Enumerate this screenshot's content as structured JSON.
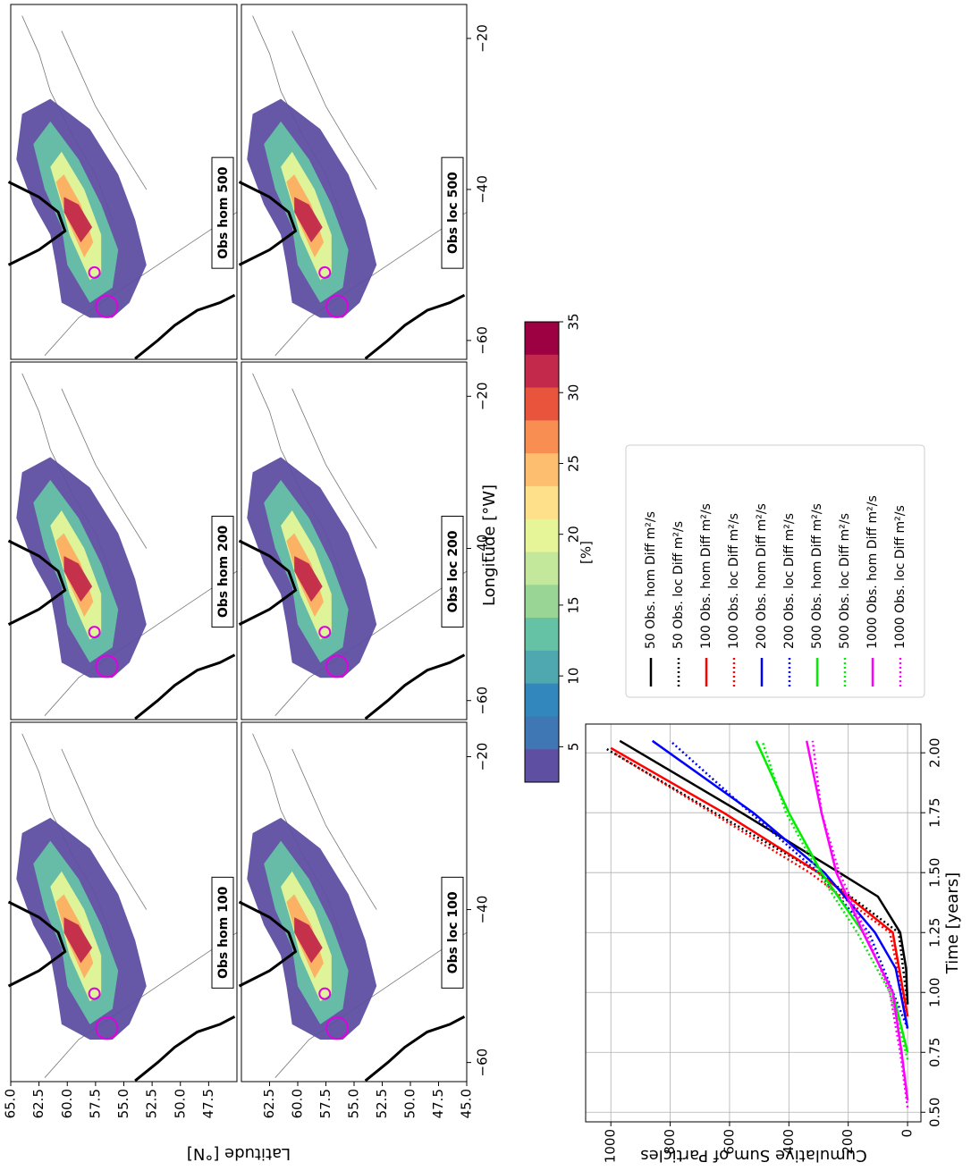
{
  "maps": {
    "panels": [
      {
        "title": "Obs hom 100"
      },
      {
        "title": "Obs hom 200"
      },
      {
        "title": "Obs hom 500"
      },
      {
        "title": "Obs loc 100"
      },
      {
        "title": "Obs loc 200"
      },
      {
        "title": "Obs loc 500"
      }
    ],
    "xlabel": "Longitude [°W]",
    "ylabel": "Latitude [°N]",
    "xlim": [
      -62.5,
      -15.5
    ],
    "ylim": [
      45,
      65
    ],
    "xticks": [
      {
        "value": -60,
        "label": "−60"
      },
      {
        "value": -40,
        "label": "−40"
      },
      {
        "value": -20,
        "label": "−20"
      }
    ],
    "row_yticks": [
      [
        {
          "value": 65,
          "label": "65.0"
        },
        {
          "value": 62.5,
          "label": "62.5"
        },
        {
          "value": 60,
          "label": "60.0"
        },
        {
          "value": 57.5,
          "label": "57.5"
        },
        {
          "value": 55,
          "label": "55.0"
        },
        {
          "value": 52.5,
          "label": "52.5"
        },
        {
          "value": 50,
          "label": "50.0"
        },
        {
          "value": 47.5,
          "label": "47.5"
        }
      ],
      [
        {
          "value": 62.5,
          "label": "62.5"
        },
        {
          "value": 60,
          "label": "60.0"
        },
        {
          "value": 57.5,
          "label": "57.5"
        },
        {
          "value": 55,
          "label": "55.0"
        },
        {
          "value": 52.5,
          "label": "52.5"
        },
        {
          "value": 50,
          "label": "50.0"
        },
        {
          "value": 47.5,
          "label": "47.5"
        },
        {
          "value": 45,
          "label": "45.0"
        }
      ]
    ],
    "colorbar": {
      "label": "[%]",
      "lim": [
        2.5,
        35
      ],
      "ticks": [
        5,
        10,
        15,
        20,
        25,
        30,
        35
      ]
    }
  },
  "chart_data": {
    "type": "line",
    "xlabel": "Time [years]",
    "ylabel": "Cumulative Sum of Particles",
    "xlim": [
      0.46,
      2.12
    ],
    "ylim": [
      -45,
      1085
    ],
    "grid": true,
    "xticks": [
      {
        "value": 0.5,
        "label": "0.50"
      },
      {
        "value": 0.75,
        "label": "0.75"
      },
      {
        "value": 1.0,
        "label": "1.00"
      },
      {
        "value": 1.25,
        "label": "1.25"
      },
      {
        "value": 1.5,
        "label": "1.50"
      },
      {
        "value": 1.75,
        "label": "1.75"
      },
      {
        "value": 2.0,
        "label": "2.00"
      }
    ],
    "yticks": [
      0,
      200,
      400,
      600,
      800,
      1000
    ],
    "series": [
      {
        "name": "50 Obs. hom Diff m²/s",
        "color": "#000000",
        "linestyle": "solid",
        "x": [
          0.95,
          1.1,
          1.25,
          1.4,
          1.5,
          1.75,
          2.05
        ],
        "values": [
          0,
          5,
          25,
          100,
          230,
          560,
          970
        ]
      },
      {
        "name": "50 Obs. loc Diff m²/s",
        "color": "#000000",
        "linestyle": "dotted",
        "x": [
          0.95,
          1.25,
          1.5,
          1.75,
          2.02
        ],
        "values": [
          0,
          30,
          300,
          650,
          1020
        ]
      },
      {
        "name": "100 Obs. hom Diff m²/s",
        "color": "#ff0000",
        "linestyle": "solid",
        "x": [
          0.9,
          1.25,
          1.5,
          1.75,
          2.02
        ],
        "values": [
          0,
          50,
          300,
          620,
          1000
        ]
      },
      {
        "name": "100 Obs. loc Diff m²/s",
        "color": "#ff0000",
        "linestyle": "dotted",
        "x": [
          0.9,
          1.25,
          1.5,
          1.75,
          2.0
        ],
        "values": [
          0,
          60,
          330,
          660,
          990
        ]
      },
      {
        "name": "200 Obs. hom Diff m²/s",
        "color": "#0000ff",
        "linestyle": "solid",
        "x": [
          0.85,
          1.1,
          1.25,
          1.5,
          1.75,
          2.05
        ],
        "values": [
          0,
          40,
          110,
          280,
          520,
          860
        ]
      },
      {
        "name": "200 Obs. loc Diff m²/s",
        "color": "#0000ff",
        "linestyle": "dotted",
        "x": [
          0.85,
          1.25,
          1.5,
          1.75,
          2.05
        ],
        "values": [
          0,
          130,
          300,
          530,
          800
        ]
      },
      {
        "name": "500 Obs. hom Diff m²/s",
        "color": "#00ee00",
        "linestyle": "solid",
        "x": [
          0.75,
          1.0,
          1.25,
          1.5,
          1.75,
          2.05
        ],
        "values": [
          0,
          50,
          150,
          290,
          400,
          510
        ]
      },
      {
        "name": "500 Obs. loc Diff m²/s",
        "color": "#00ee00",
        "linestyle": "dotted",
        "x": [
          0.72,
          1.0,
          1.25,
          1.5,
          1.75,
          2.05
        ],
        "values": [
          0,
          60,
          170,
          300,
          410,
          490
        ]
      },
      {
        "name": "1000 Obs. hom Diff m²/s",
        "color": "#ff00ff",
        "linestyle": "solid",
        "x": [
          0.55,
          0.75,
          1.0,
          1.25,
          1.5,
          1.75,
          2.05
        ],
        "values": [
          0,
          20,
          50,
          150,
          240,
          290,
          340
        ]
      },
      {
        "name": "1000 Obs. loc Diff m²/s",
        "color": "#ff00ff",
        "linestyle": "dotted",
        "x": [
          0.52,
          0.75,
          1.0,
          1.25,
          1.5,
          1.75,
          2.05
        ],
        "values": [
          0,
          25,
          60,
          140,
          230,
          290,
          320
        ]
      }
    ]
  }
}
